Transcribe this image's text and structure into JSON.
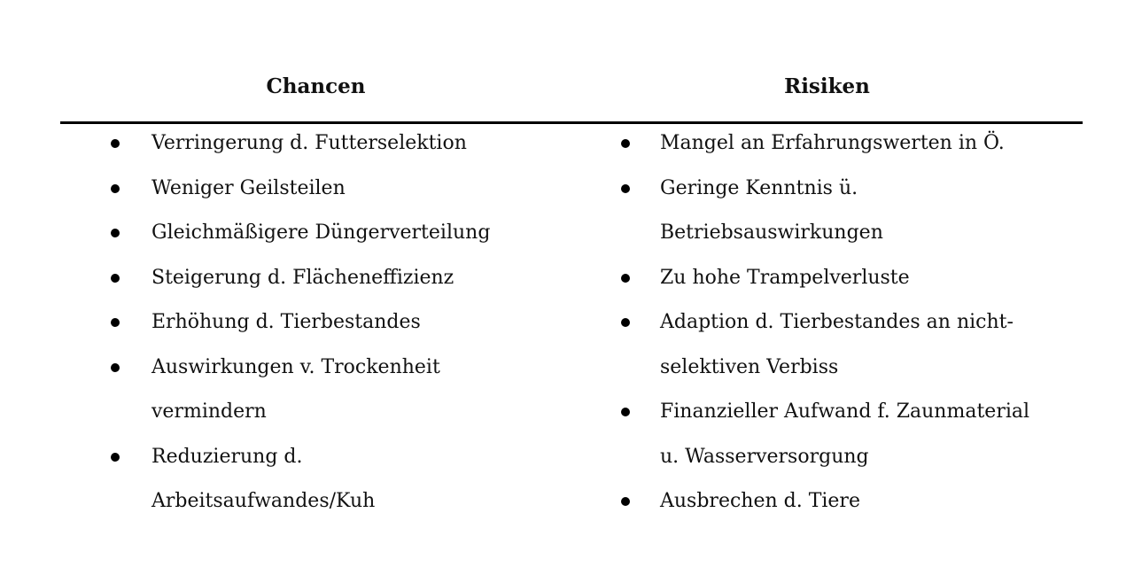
{
  "chancen": {
    "title": "Chancen",
    "items": [
      {
        "lines": [
          "Verringerung d. Futterselektion"
        ]
      },
      {
        "lines": [
          "Weniger Geilsteilen"
        ]
      },
      {
        "lines": [
          "Gleichmäßigere Düngerverteilung"
        ]
      },
      {
        "lines": [
          "Steigerung d. Flächeneffizienz"
        ]
      },
      {
        "lines": [
          "Erhöhung d. Tierbestandes"
        ]
      },
      {
        "lines": [
          "Auswirkungen v. Trockenheit",
          "vermindern"
        ]
      },
      {
        "lines": [
          "Reduzierung d.",
          "Arbeitsaufwandes/Kuh"
        ]
      }
    ]
  },
  "risiken": {
    "title": "Risiken",
    "items": [
      {
        "lines": [
          "Mangel an Erfahrungswerten in Ö."
        ]
      },
      {
        "lines": [
          "Geringe Kenntnis ü.",
          "Betriebsauswirkungen"
        ]
      },
      {
        "lines": [
          "Zu hohe Trampelverluste"
        ]
      },
      {
        "lines": [
          "Adaption d. Tierbestandes an nicht-",
          "selektiven Verbiss"
        ]
      },
      {
        "lines": [
          "Finanzieller Aufwand f. Zaunmaterial",
          "u. Wasserversorgung"
        ]
      },
      {
        "lines": [
          "Ausbrechen d. Tiere"
        ]
      }
    ]
  }
}
